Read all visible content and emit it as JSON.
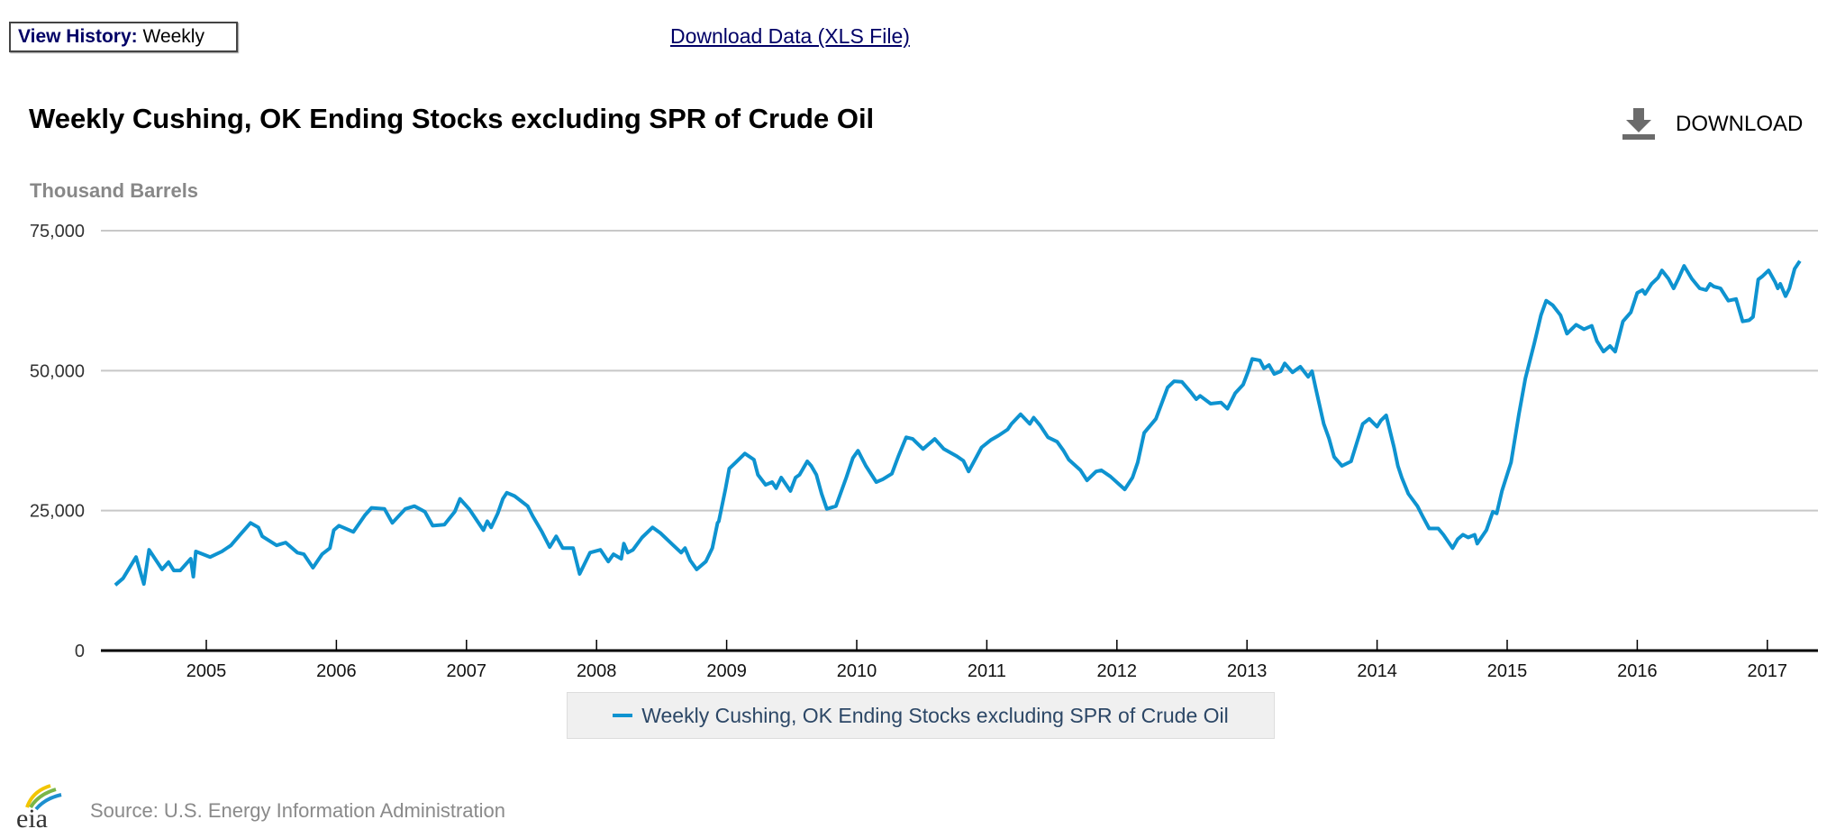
{
  "header": {
    "view_history_label": "View History:",
    "view_history_value": "Weekly",
    "download_data_link": "Download Data (XLS File)"
  },
  "chart_header": {
    "title": "Weekly Cushing, OK Ending Stocks excluding SPR of Crude Oil",
    "download_button": "DOWNLOAD",
    "download_icon": "download-icon"
  },
  "footer": {
    "logo_text": "eia",
    "source": "Source: U.S. Energy Information Administration"
  },
  "colors": {
    "series": "#0e93d0",
    "grid": "#c8c8c8",
    "axis": "#000000"
  },
  "chart_data": {
    "type": "line",
    "title": "Weekly Cushing, OK Ending Stocks excluding SPR of Crude Oil",
    "ylabel": "Thousand Barrels",
    "xlabel": "",
    "ylim": [
      0,
      75000
    ],
    "yticks": [
      0,
      25000,
      50000,
      75000
    ],
    "ytick_labels": [
      "0",
      "25,000",
      "50,000",
      "75,000"
    ],
    "xticks": [
      2005,
      2006,
      2007,
      2008,
      2009,
      2010,
      2011,
      2012,
      2013,
      2014,
      2015,
      2016,
      2017
    ],
    "xtick_labels": [
      "2005",
      "2006",
      "2007",
      "2008",
      "2009",
      "2010",
      "2011",
      "2012",
      "2013",
      "2014",
      "2015",
      "2016",
      "2017"
    ],
    "grid": true,
    "legend": "bottom-center",
    "series": [
      {
        "name": "Weekly Cushing, OK Ending Stocks excluding SPR of Crude Oil",
        "points": [
          [
            2004.3,
            11700
          ],
          [
            2004.36,
            12900
          ],
          [
            2004.46,
            16700
          ],
          [
            2004.52,
            11900
          ],
          [
            2004.56,
            18000
          ],
          [
            2004.66,
            14500
          ],
          [
            2004.71,
            15800
          ],
          [
            2004.75,
            14300
          ],
          [
            2004.8,
            14300
          ],
          [
            2004.88,
            16400
          ],
          [
            2004.9,
            13200
          ],
          [
            2004.92,
            17700
          ],
          [
            2005.03,
            16700
          ],
          [
            2005.12,
            17700
          ],
          [
            2005.19,
            18800
          ],
          [
            2005.26,
            20700
          ],
          [
            2005.34,
            22800
          ],
          [
            2005.4,
            22000
          ],
          [
            2005.43,
            20400
          ],
          [
            2005.54,
            18800
          ],
          [
            2005.61,
            19300
          ],
          [
            2005.7,
            17500
          ],
          [
            2005.75,
            17200
          ],
          [
            2005.82,
            14800
          ],
          [
            2005.89,
            17200
          ],
          [
            2005.95,
            18300
          ],
          [
            2005.98,
            21500
          ],
          [
            2006.02,
            22300
          ],
          [
            2006.13,
            21200
          ],
          [
            2006.22,
            24200
          ],
          [
            2006.27,
            25500
          ],
          [
            2006.37,
            25300
          ],
          [
            2006.43,
            22800
          ],
          [
            2006.53,
            25300
          ],
          [
            2006.6,
            25800
          ],
          [
            2006.68,
            24800
          ],
          [
            2006.74,
            22300
          ],
          [
            2006.83,
            22500
          ],
          [
            2006.91,
            24800
          ],
          [
            2006.95,
            27100
          ],
          [
            2007.02,
            25300
          ],
          [
            2007.13,
            21500
          ],
          [
            2007.16,
            23100
          ],
          [
            2007.19,
            22000
          ],
          [
            2007.24,
            24500
          ],
          [
            2007.28,
            27100
          ],
          [
            2007.31,
            28200
          ],
          [
            2007.37,
            27600
          ],
          [
            2007.47,
            25800
          ],
          [
            2007.51,
            24000
          ],
          [
            2007.58,
            21200
          ],
          [
            2007.64,
            18500
          ],
          [
            2007.69,
            20400
          ],
          [
            2007.74,
            18300
          ],
          [
            2007.82,
            18300
          ],
          [
            2007.87,
            13700
          ],
          [
            2007.95,
            17500
          ],
          [
            2008.03,
            18000
          ],
          [
            2008.09,
            15900
          ],
          [
            2008.13,
            17200
          ],
          [
            2008.19,
            16400
          ],
          [
            2008.21,
            19100
          ],
          [
            2008.24,
            17500
          ],
          [
            2008.28,
            18000
          ],
          [
            2008.35,
            20200
          ],
          [
            2008.43,
            22000
          ],
          [
            2008.49,
            21000
          ],
          [
            2008.59,
            18800
          ],
          [
            2008.65,
            17500
          ],
          [
            2008.68,
            18300
          ],
          [
            2008.72,
            16100
          ],
          [
            2008.77,
            14500
          ],
          [
            2008.84,
            15900
          ],
          [
            2008.89,
            18300
          ],
          [
            2008.93,
            22800
          ],
          [
            2008.94,
            23100
          ],
          [
            2008.99,
            28800
          ],
          [
            2009.02,
            32500
          ],
          [
            2009.07,
            33600
          ],
          [
            2009.14,
            35200
          ],
          [
            2009.21,
            34100
          ],
          [
            2009.24,
            31400
          ],
          [
            2009.3,
            29600
          ],
          [
            2009.35,
            30100
          ],
          [
            2009.38,
            29000
          ],
          [
            2009.42,
            30900
          ],
          [
            2009.49,
            28500
          ],
          [
            2009.53,
            30900
          ],
          [
            2009.56,
            31400
          ],
          [
            2009.62,
            33800
          ],
          [
            2009.65,
            33000
          ],
          [
            2009.69,
            31400
          ],
          [
            2009.73,
            28000
          ],
          [
            2009.77,
            25300
          ],
          [
            2009.84,
            25800
          ],
          [
            2009.92,
            30900
          ],
          [
            2009.97,
            34400
          ],
          [
            2010.01,
            35700
          ],
          [
            2010.07,
            33000
          ],
          [
            2010.15,
            30100
          ],
          [
            2010.2,
            30600
          ],
          [
            2010.27,
            31600
          ],
          [
            2010.32,
            34700
          ],
          [
            2010.38,
            38100
          ],
          [
            2010.43,
            37800
          ],
          [
            2010.51,
            36000
          ],
          [
            2010.6,
            37800
          ],
          [
            2010.67,
            36000
          ],
          [
            2010.77,
            34700
          ],
          [
            2010.82,
            33900
          ],
          [
            2010.86,
            32000
          ],
          [
            2010.96,
            36300
          ],
          [
            2011.03,
            37600
          ],
          [
            2011.09,
            38400
          ],
          [
            2011.16,
            39500
          ],
          [
            2011.19,
            40500
          ],
          [
            2011.26,
            42200
          ],
          [
            2011.33,
            40500
          ],
          [
            2011.36,
            41600
          ],
          [
            2011.41,
            40200
          ],
          [
            2011.47,
            38100
          ],
          [
            2011.54,
            37300
          ],
          [
            2011.59,
            35700
          ],
          [
            2011.63,
            34100
          ],
          [
            2011.72,
            32200
          ],
          [
            2011.77,
            30400
          ],
          [
            2011.84,
            32000
          ],
          [
            2011.88,
            32200
          ],
          [
            2011.95,
            31100
          ],
          [
            2012.06,
            28800
          ],
          [
            2012.12,
            30900
          ],
          [
            2012.16,
            33600
          ],
          [
            2012.21,
            38900
          ],
          [
            2012.3,
            41400
          ],
          [
            2012.39,
            47000
          ],
          [
            2012.44,
            48100
          ],
          [
            2012.5,
            48000
          ],
          [
            2012.57,
            46100
          ],
          [
            2012.61,
            44900
          ],
          [
            2012.64,
            45500
          ],
          [
            2012.72,
            44100
          ],
          [
            2012.8,
            44300
          ],
          [
            2012.85,
            43200
          ],
          [
            2012.91,
            46000
          ],
          [
            2012.97,
            47500
          ],
          [
            2013.01,
            49900
          ],
          [
            2013.04,
            52100
          ],
          [
            2013.1,
            51800
          ],
          [
            2013.13,
            50400
          ],
          [
            2013.17,
            51000
          ],
          [
            2013.21,
            49400
          ],
          [
            2013.26,
            49900
          ],
          [
            2013.29,
            51300
          ],
          [
            2013.35,
            49700
          ],
          [
            2013.41,
            50700
          ],
          [
            2013.47,
            48900
          ],
          [
            2013.5,
            49900
          ],
          [
            2013.53,
            46700
          ],
          [
            2013.59,
            40500
          ],
          [
            2013.63,
            37900
          ],
          [
            2013.67,
            34600
          ],
          [
            2013.73,
            33000
          ],
          [
            2013.8,
            33800
          ],
          [
            2013.84,
            36800
          ],
          [
            2013.89,
            40500
          ],
          [
            2013.94,
            41400
          ],
          [
            2014.0,
            40000
          ],
          [
            2014.03,
            41100
          ],
          [
            2014.07,
            42000
          ],
          [
            2014.13,
            36300
          ],
          [
            2014.16,
            33000
          ],
          [
            2014.19,
            30900
          ],
          [
            2014.24,
            28000
          ],
          [
            2014.31,
            25800
          ],
          [
            2014.35,
            24000
          ],
          [
            2014.4,
            21800
          ],
          [
            2014.47,
            21800
          ],
          [
            2014.51,
            20700
          ],
          [
            2014.58,
            18300
          ],
          [
            2014.62,
            19900
          ],
          [
            2014.66,
            20700
          ],
          [
            2014.7,
            20200
          ],
          [
            2014.75,
            20700
          ],
          [
            2014.77,
            19100
          ],
          [
            2014.84,
            21500
          ],
          [
            2014.89,
            24800
          ],
          [
            2014.92,
            24500
          ],
          [
            2014.96,
            28500
          ],
          [
            2015.03,
            33600
          ],
          [
            2015.09,
            42200
          ],
          [
            2015.14,
            48600
          ],
          [
            2015.21,
            55000
          ],
          [
            2015.26,
            59900
          ],
          [
            2015.3,
            62500
          ],
          [
            2015.35,
            61700
          ],
          [
            2015.41,
            59900
          ],
          [
            2015.46,
            56600
          ],
          [
            2015.53,
            58200
          ],
          [
            2015.59,
            57400
          ],
          [
            2015.65,
            58000
          ],
          [
            2015.69,
            55300
          ],
          [
            2015.74,
            53400
          ],
          [
            2015.79,
            54400
          ],
          [
            2015.83,
            53400
          ],
          [
            2015.89,
            58800
          ],
          [
            2015.95,
            60400
          ],
          [
            2016.0,
            63900
          ],
          [
            2016.04,
            64400
          ],
          [
            2016.06,
            63700
          ],
          [
            2016.11,
            65500
          ],
          [
            2016.16,
            66600
          ],
          [
            2016.19,
            67900
          ],
          [
            2016.24,
            66400
          ],
          [
            2016.28,
            64700
          ],
          [
            2016.32,
            66600
          ],
          [
            2016.36,
            68700
          ],
          [
            2016.42,
            66400
          ],
          [
            2016.48,
            64700
          ],
          [
            2016.53,
            64400
          ],
          [
            2016.56,
            65500
          ],
          [
            2016.59,
            65000
          ],
          [
            2016.64,
            64700
          ],
          [
            2016.7,
            62500
          ],
          [
            2016.76,
            62800
          ],
          [
            2016.81,
            58800
          ],
          [
            2016.86,
            59000
          ],
          [
            2016.89,
            59600
          ],
          [
            2016.93,
            66300
          ],
          [
            2016.96,
            66800
          ],
          [
            2017.01,
            67900
          ],
          [
            2017.06,
            65800
          ],
          [
            2017.08,
            64700
          ],
          [
            2017.1,
            65500
          ],
          [
            2017.14,
            63300
          ],
          [
            2017.17,
            64700
          ],
          [
            2017.21,
            68200
          ],
          [
            2017.25,
            69600
          ]
        ]
      }
    ]
  }
}
